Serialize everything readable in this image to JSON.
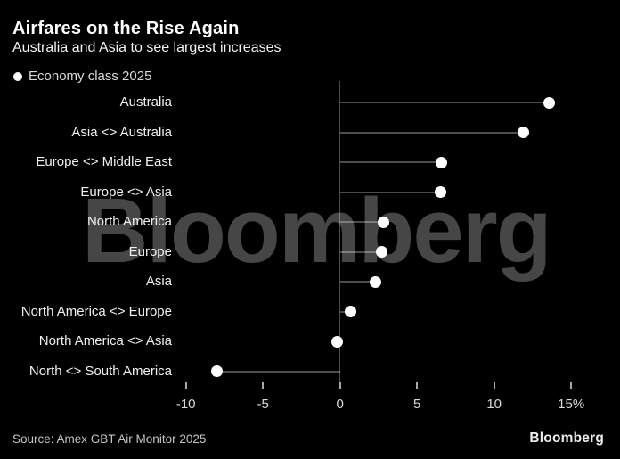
{
  "header": {
    "title": "Airfares on the Rise Again",
    "subtitle": "Australia and Asia to see largest increases"
  },
  "legend": {
    "label": "Economy class 2025"
  },
  "chart_data": {
    "type": "scatter",
    "variant": "horizontal-lollipop-dot-plot",
    "title": "Airfares on the Rise Again",
    "subtitle": "Australia and Asia to see largest increases",
    "series_name": "Economy class 2025",
    "categories": [
      "Australia",
      "Asia <> Australia",
      "Europe <> Middle East",
      "Europe <> Asia",
      "North America",
      "Europe",
      "Asia",
      "North America <> Europe",
      "North America <> Asia",
      "North <> South America"
    ],
    "values": [
      13.6,
      11.9,
      6.6,
      6.5,
      2.8,
      2.7,
      2.3,
      0.7,
      -0.2,
      -8.0
    ],
    "value_unit": "%",
    "xlabel": "",
    "ylabel": "",
    "xlim": [
      -12,
      17
    ],
    "x_ticks": [
      -10,
      -5,
      0,
      5,
      10,
      15
    ],
    "x_tick_labels": [
      "-10",
      "-5",
      "0",
      "5",
      "10",
      "15%"
    ],
    "grid": "off",
    "legend_position": "top-left"
  },
  "watermark": "Bloomberg",
  "footer": {
    "source": "Source: Amex GBT Air Monitor 2025",
    "logo": "Bloomberg"
  },
  "colors": {
    "background": "#000000",
    "dot": "#ffffff",
    "stem": "rgba(255,255,255,0.30)",
    "tick": "#a8a8a8",
    "watermark": "#464646",
    "text": "#f0f0f0"
  }
}
